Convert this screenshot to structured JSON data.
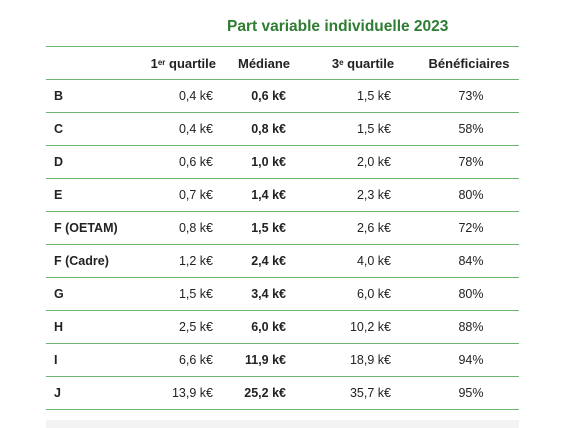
{
  "title": "Part variable individuelle 2023",
  "colors": {
    "title": "#2e7d32",
    "rule": "#6db56d"
  },
  "table": {
    "headers": {
      "q1_prefix": "1",
      "q1_sup": "er",
      "q1_suffix": " quartile",
      "median": "Médiane",
      "q3_prefix": "3",
      "q3_sup": "e",
      "q3_suffix": " quartile",
      "beneficiaries": "Bénéficiaires"
    },
    "rows": [
      {
        "label": "B",
        "q1": "0,4 k€",
        "median": "0,6 k€",
        "q3": "1,5 k€",
        "beneficiaries": "73%"
      },
      {
        "label": "C",
        "q1": "0,4 k€",
        "median": "0,8 k€",
        "q3": "1,5 k€",
        "beneficiaries": "58%"
      },
      {
        "label": "D",
        "q1": "0,6 k€",
        "median": "1,0 k€",
        "q3": "2,0 k€",
        "beneficiaries": "78%"
      },
      {
        "label": "E",
        "q1": "0,7 k€",
        "median": "1,4 k€",
        "q3": "2,3 k€",
        "beneficiaries": "80%"
      },
      {
        "label": "F (OETAM)",
        "q1": "0,8 k€",
        "median": "1,5 k€",
        "q3": "2,6 k€",
        "beneficiaries": "72%"
      },
      {
        "label": "F (Cadre)",
        "q1": "1,2 k€",
        "median": "2,4 k€",
        "q3": "4,0 k€",
        "beneficiaries": "84%"
      },
      {
        "label": "G",
        "q1": "1,5 k€",
        "median": "3,4 k€",
        "q3": "6,0 k€",
        "beneficiaries": "80%"
      },
      {
        "label": "H",
        "q1": "2,5 k€",
        "median": "6,0 k€",
        "q3": "10,2 k€",
        "beneficiaries": "88%"
      },
      {
        "label": "I",
        "q1": "6,6 k€",
        "median": "11,9 k€",
        "q3": "18,9 k€",
        "beneficiaries": "94%"
      },
      {
        "label": "J",
        "q1": "13,9 k€",
        "median": "25,2 k€",
        "q3": "35,7 k€",
        "beneficiaries": "95%"
      }
    ]
  }
}
